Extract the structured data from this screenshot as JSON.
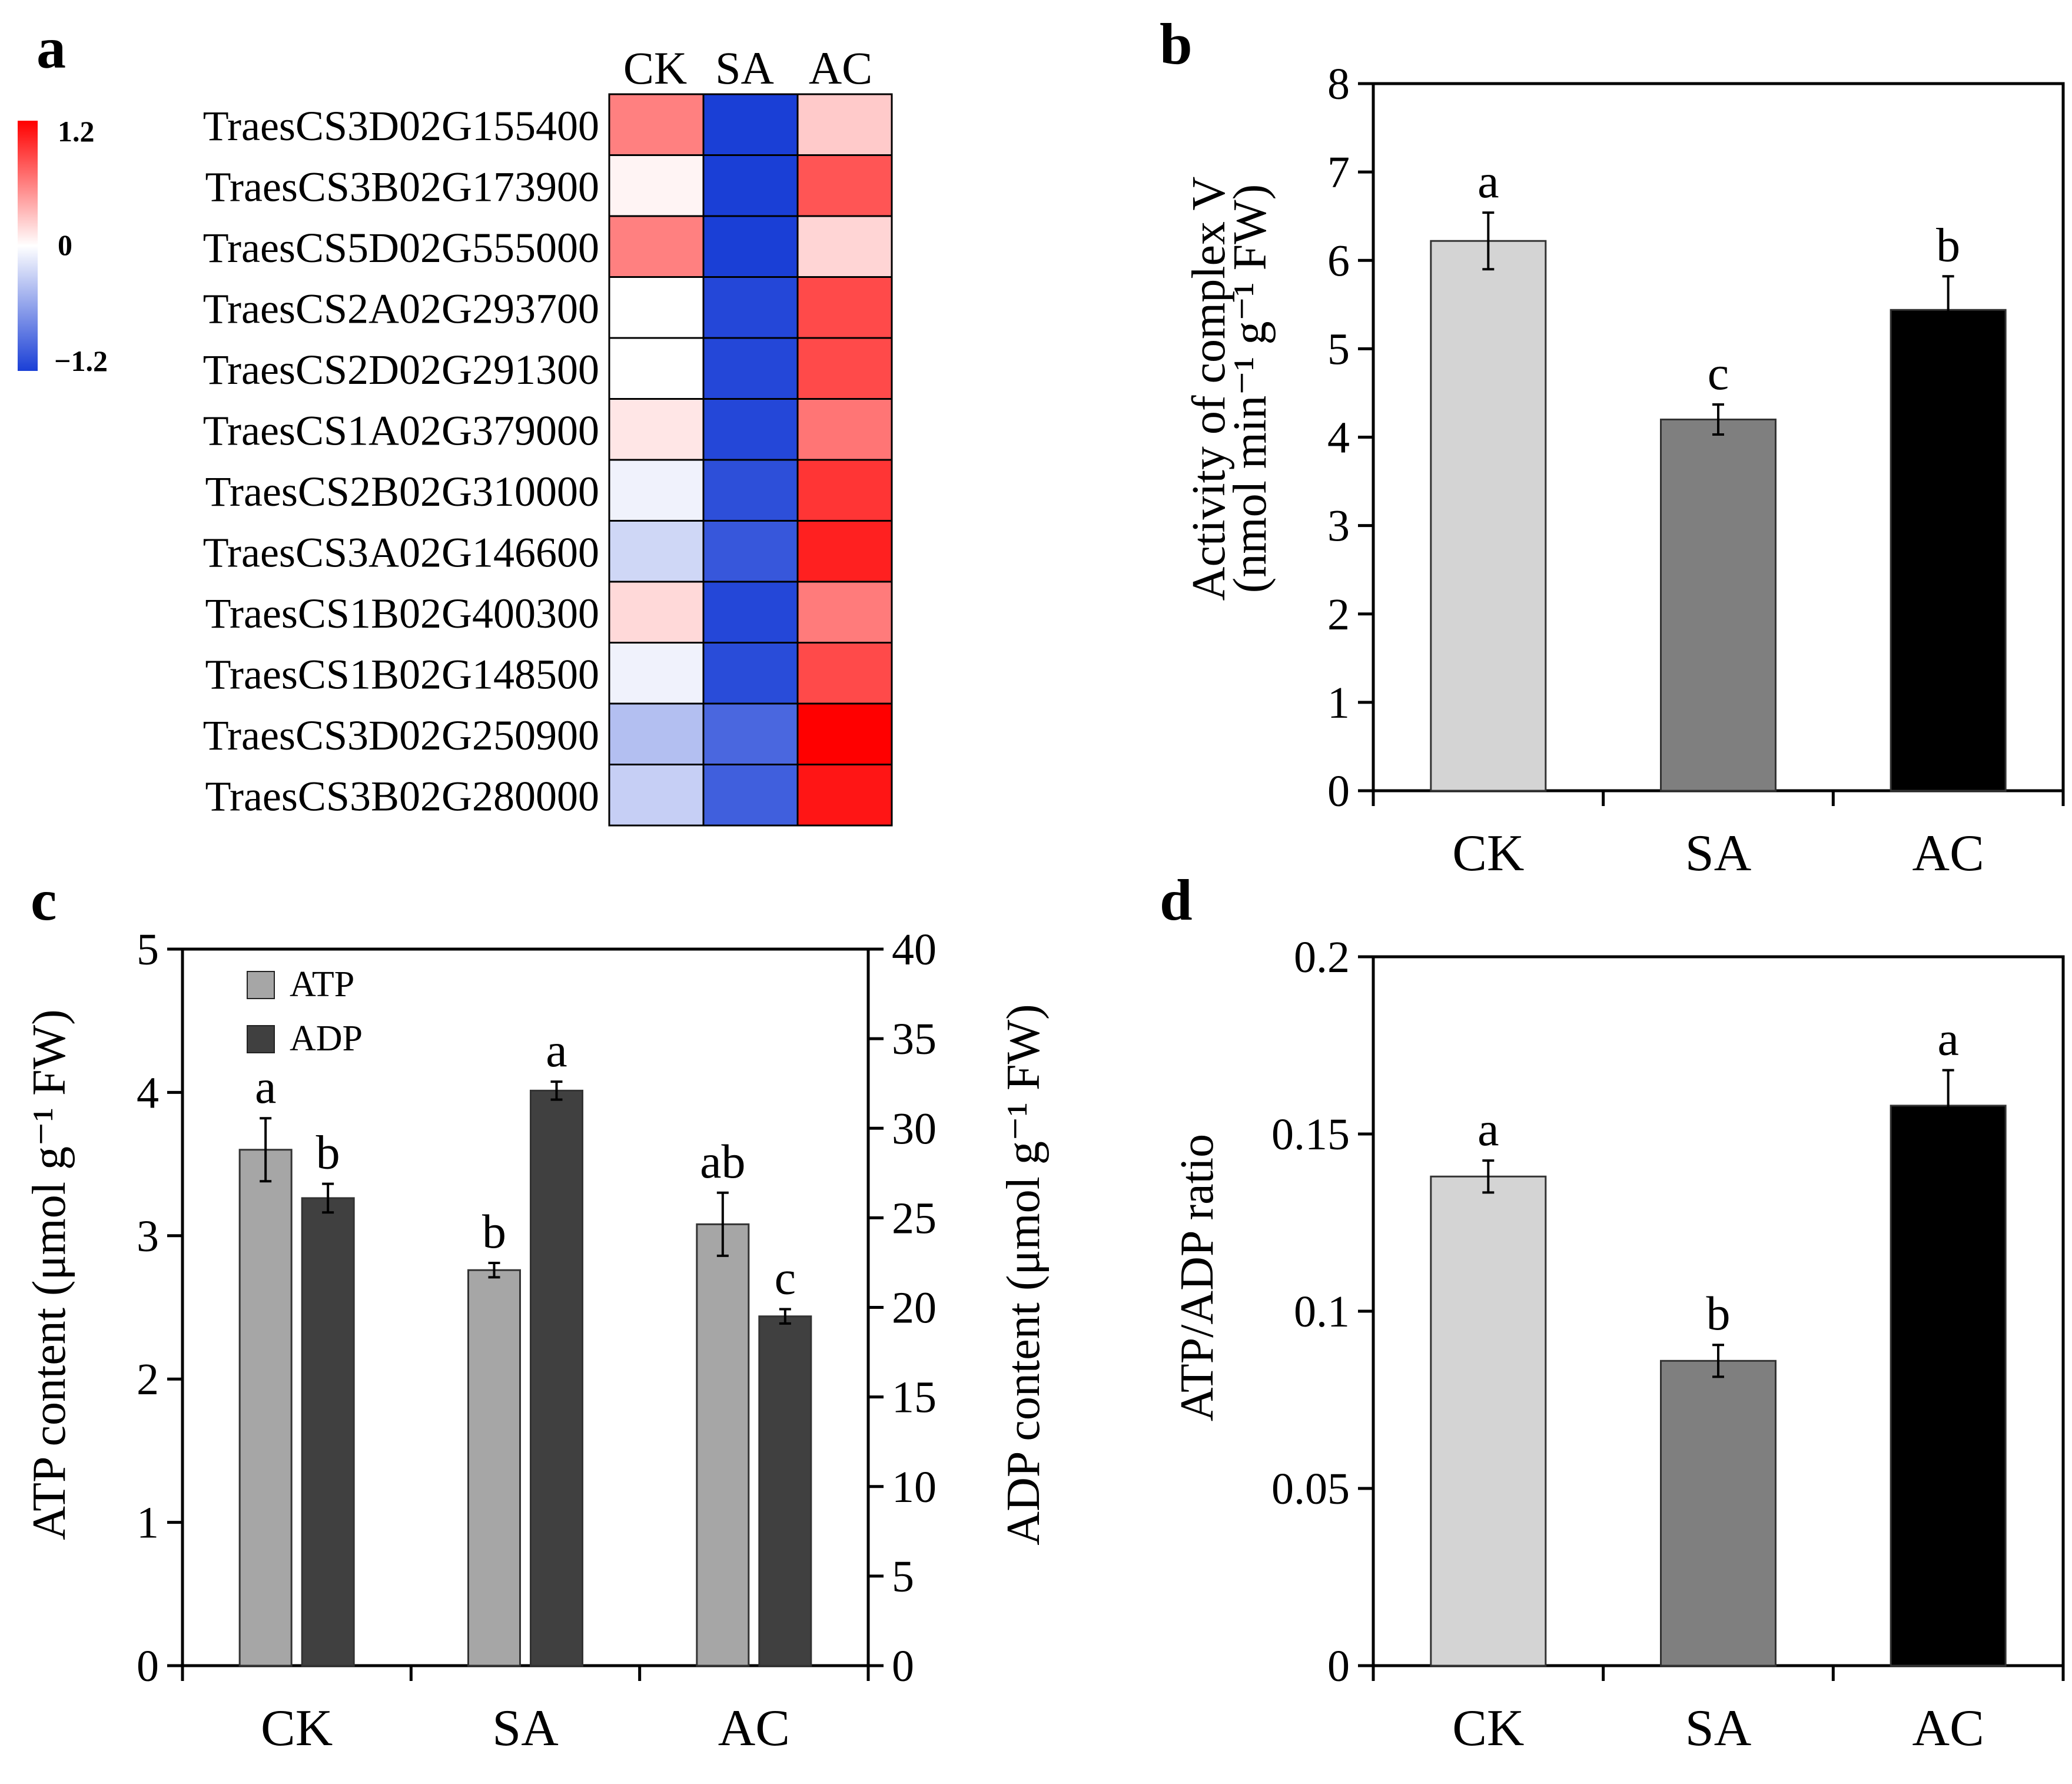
{
  "colors": {
    "ck": "#d4d4d4",
    "sa": "#7f7f7f",
    "ac": "#000000",
    "atp": "#a6a6a6",
    "adp": "#404040",
    "heat_high": "#ff0000",
    "heat_mid": "#ffffff",
    "heat_low": "#1a3fd6"
  },
  "chart_data": [
    {
      "panel": "a",
      "type": "heatmap",
      "columns": [
        "CK",
        "SA",
        "AC"
      ],
      "rows": [
        "TraesCS3D02G155400",
        "TraesCS3B02G173900",
        "TraesCS5D02G555000",
        "TraesCS2A02G293700",
        "TraesCS2D02G291300",
        "TraesCS1A02G379000",
        "TraesCS2B02G310000",
        "TraesCS3A02G146600",
        "TraesCS1B02G400300",
        "TraesCS1B02G148500",
        "TraesCS3D02G250900",
        "TraesCS3B02G280000"
      ],
      "values": [
        [
          0.6,
          -1.2,
          0.25
        ],
        [
          0.05,
          -1.2,
          0.8
        ],
        [
          0.6,
          -1.2,
          0.2
        ],
        [
          0.0,
          -1.15,
          0.85
        ],
        [
          0.0,
          -1.15,
          0.85
        ],
        [
          0.12,
          -1.15,
          0.65
        ],
        [
          -0.08,
          -1.1,
          0.95
        ],
        [
          -0.25,
          -1.05,
          1.05
        ],
        [
          0.18,
          -1.15,
          0.62
        ],
        [
          -0.08,
          -1.12,
          0.85
        ],
        [
          -0.4,
          -0.95,
          1.2
        ],
        [
          -0.3,
          -1.0,
          1.1
        ]
      ],
      "scale": {
        "max_label": "1.2",
        "mid_label": "0",
        "min_label": "−1.2",
        "range": [
          -1.2,
          1.2
        ]
      }
    },
    {
      "panel": "b",
      "type": "bar",
      "categories": [
        "CK",
        "SA",
        "AC"
      ],
      "values": [
        6.22,
        4.2,
        5.44
      ],
      "errors": [
        0.32,
        0.17,
        0.38
      ],
      "letters": [
        "a",
        "c",
        "b"
      ],
      "ylabel_line1": "Activity of complex V",
      "ylabel_line2": "(nmol min⁻¹ g⁻¹ FW)",
      "ylim": [
        0,
        8
      ],
      "yticks": [
        "0",
        "1",
        "2",
        "3",
        "4",
        "5",
        "6",
        "7",
        "8"
      ]
    },
    {
      "panel": "c",
      "type": "bar",
      "categories": [
        "CK",
        "SA",
        "AC"
      ],
      "series": [
        {
          "name": "ATP",
          "axis": "left",
          "values": [
            3.6,
            2.76,
            3.08
          ],
          "errors": [
            0.22,
            0.05,
            0.22
          ],
          "letters": [
            "a",
            "b",
            "ab"
          ]
        },
        {
          "name": "ADP",
          "axis": "right",
          "values": [
            26.1,
            32.1,
            19.5
          ],
          "errors": [
            0.8,
            0.5,
            0.4
          ],
          "letters": [
            "b",
            "a",
            "c"
          ]
        }
      ],
      "ylabel_left": "ATP content (μmol g⁻¹ FW)",
      "ylabel_right": "ADP content (μmol g⁻¹ FW)",
      "ylim_left": [
        0,
        5
      ],
      "ylim_right": [
        0,
        40
      ],
      "yticks_left": [
        "0",
        "1",
        "2",
        "3",
        "4",
        "5"
      ],
      "yticks_right": [
        "0",
        "5",
        "10",
        "15",
        "20",
        "25",
        "30",
        "35",
        "40"
      ],
      "legend": [
        "ATP",
        "ADP"
      ]
    },
    {
      "panel": "d",
      "type": "bar",
      "categories": [
        "CK",
        "SA",
        "AC"
      ],
      "values": [
        0.138,
        0.086,
        0.158
      ],
      "errors": [
        0.0045,
        0.0045,
        0.01
      ],
      "letters": [
        "a",
        "b",
        "a"
      ],
      "ylabel": "ATP/ADP ratio",
      "ylim": [
        0,
        0.2
      ],
      "yticks": [
        "0",
        "0.05",
        "0.1",
        "0.15",
        "0.2"
      ]
    }
  ]
}
